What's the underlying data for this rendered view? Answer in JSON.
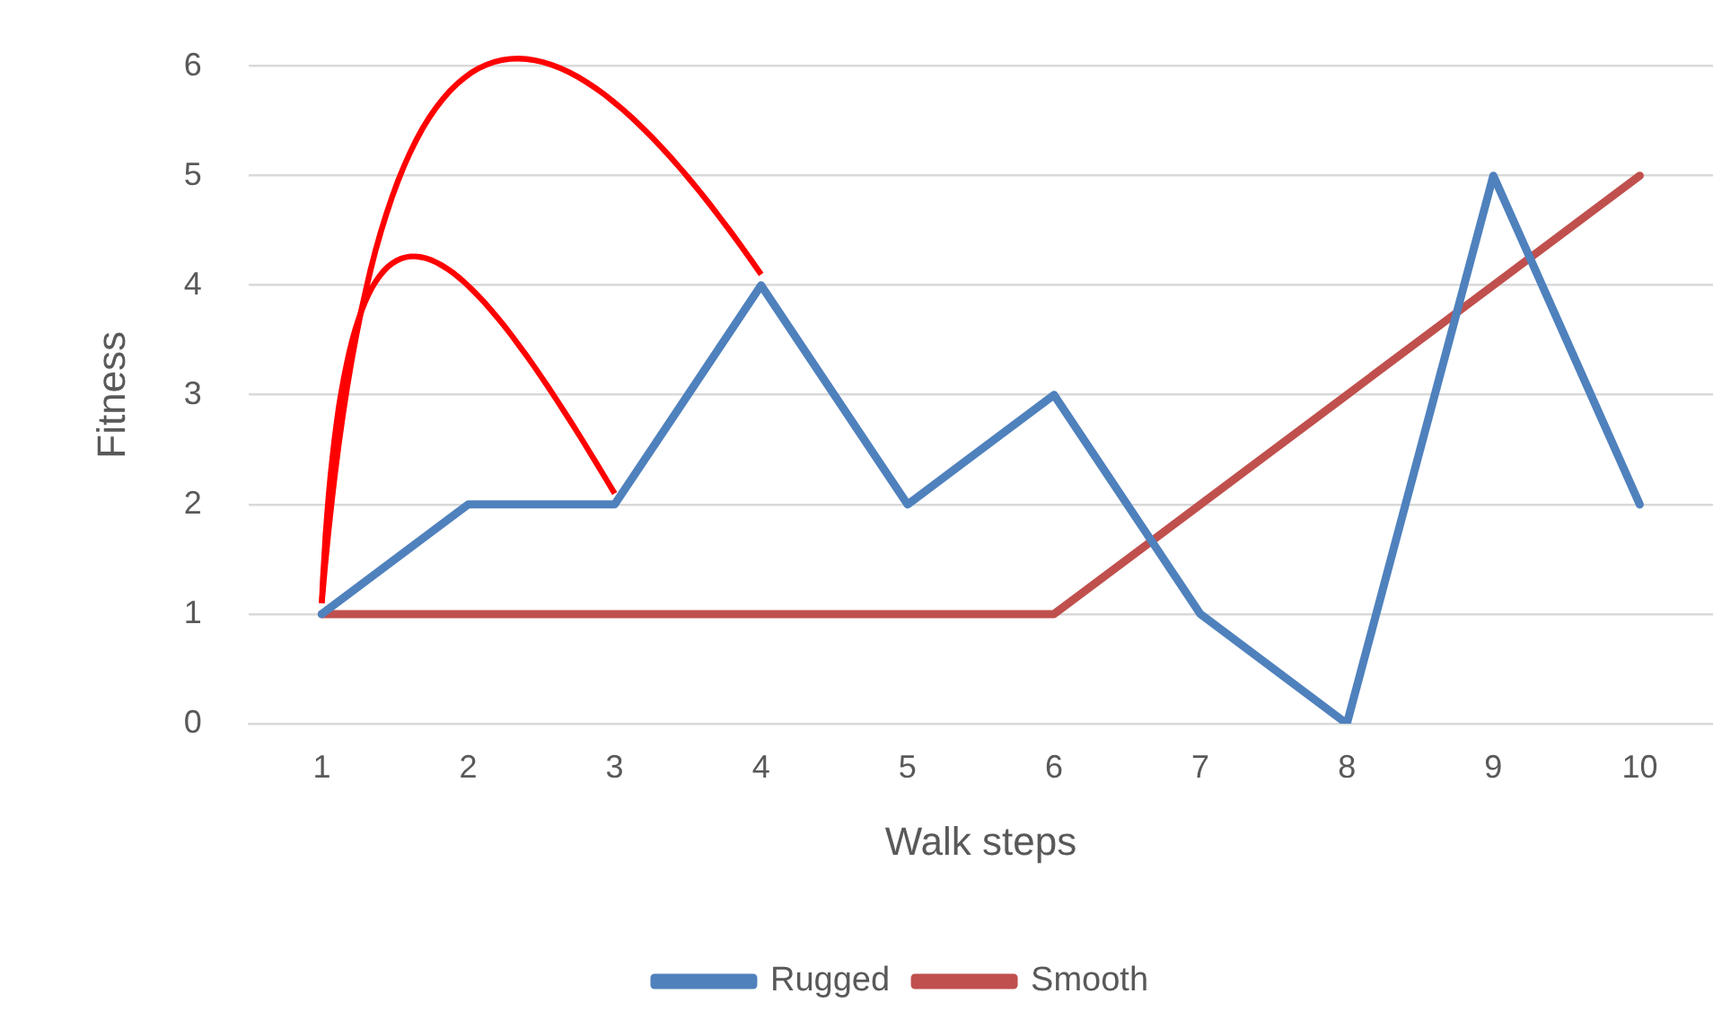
{
  "chart_data": {
    "type": "line",
    "xlabel": "Walk steps",
    "ylabel": "Fitness",
    "categories": [
      "1",
      "2",
      "3",
      "4",
      "5",
      "6",
      "7",
      "8",
      "9",
      "10"
    ],
    "series": [
      {
        "name": "Rugged",
        "color": "#4f81bd",
        "values": [
          1,
          2,
          2,
          4,
          2,
          3,
          1,
          0,
          5,
          2
        ]
      },
      {
        "name": "Smooth",
        "color": "#c0504d",
        "values": [
          1,
          1,
          1,
          1,
          1,
          1,
          2,
          3,
          4,
          5
        ]
      }
    ],
    "ylim": [
      0,
      6
    ],
    "yticks": [
      0,
      1,
      2,
      3,
      4,
      5,
      6
    ],
    "grid": "y",
    "legend": "bottom",
    "marker": "none",
    "line_style": "solid"
  }
}
